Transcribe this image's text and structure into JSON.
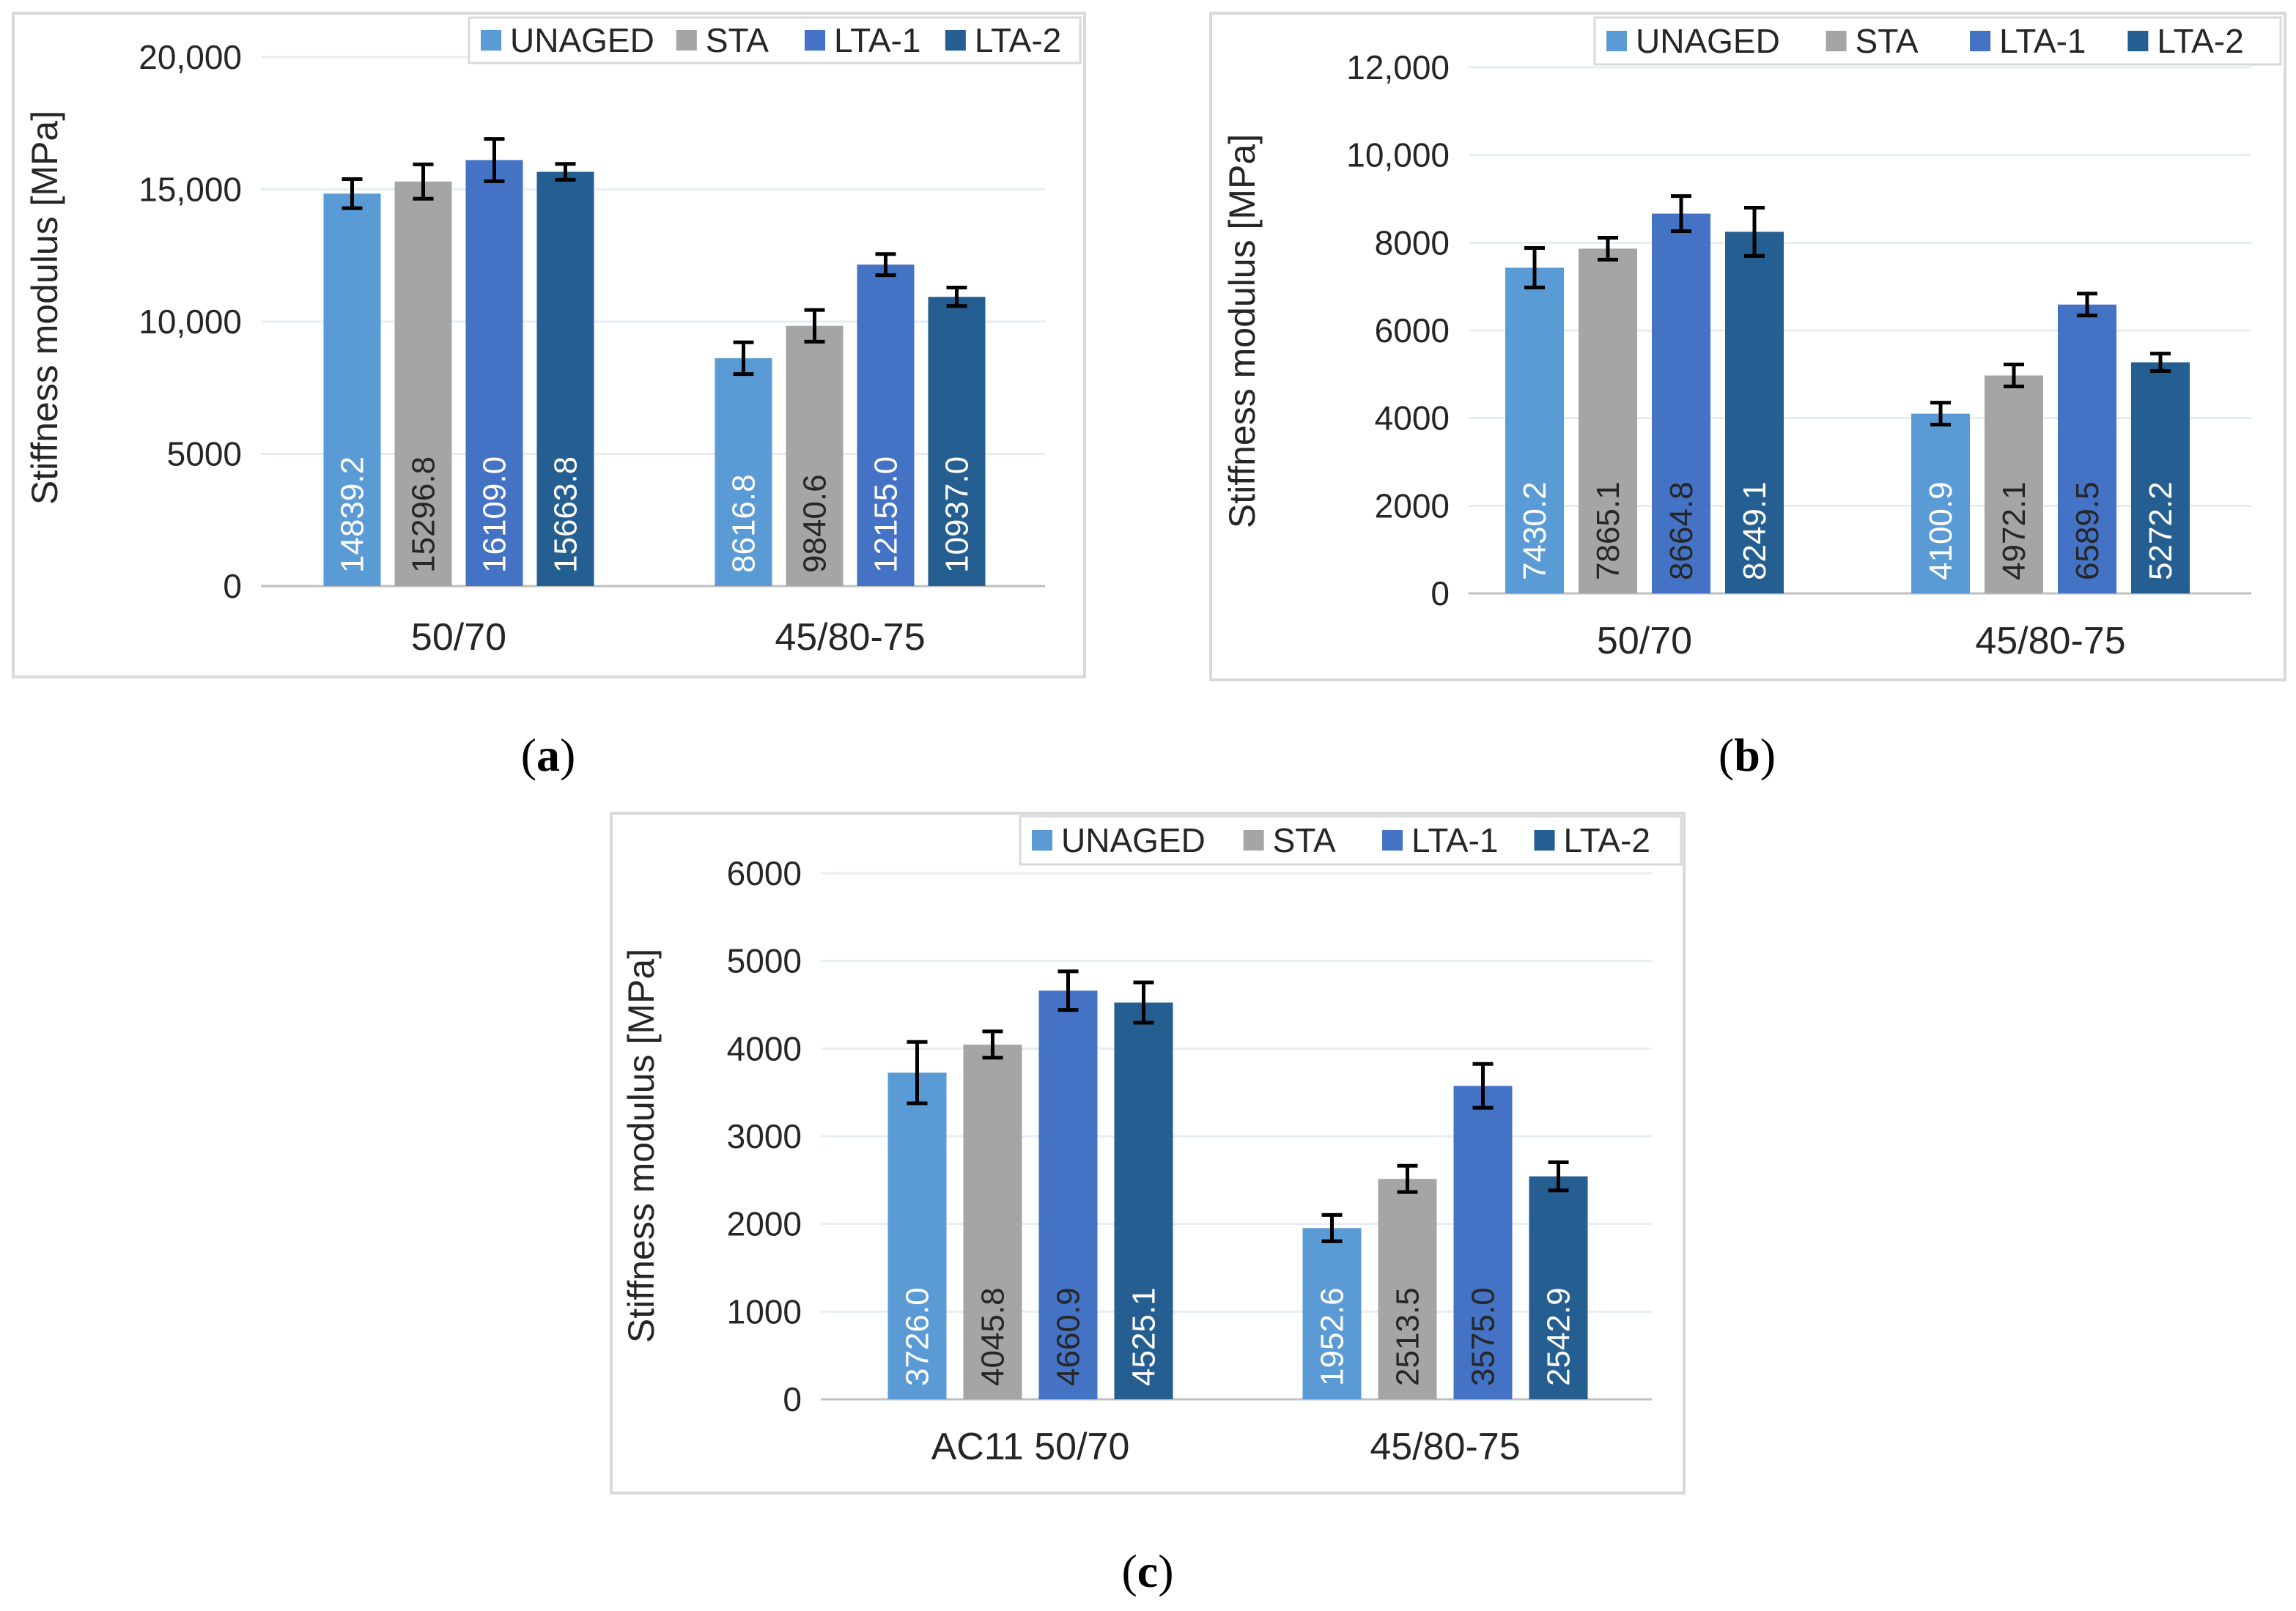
{
  "chart_data": [
    {
      "type": "bar",
      "panel_label": "a",
      "ylabel": "Stiffness modulus [MPa]",
      "ylim": [
        0,
        20000
      ],
      "yticks": [
        0,
        5000,
        10000,
        15000,
        20000
      ],
      "ytick_labels": [
        "0",
        "5000",
        "10,000",
        "15,000",
        "20,000"
      ],
      "categories": [
        "50/70",
        "45/80-75"
      ],
      "legend": [
        "UNAGED",
        "STA",
        "LTA-1",
        "LTA-2"
      ],
      "series": [
        {
          "name": "UNAGED",
          "color": "#5b9bd5",
          "values": [
            14839.2,
            8616.8
          ],
          "labels": [
            "14839.2",
            "8616.8"
          ],
          "errors": [
            550,
            600
          ],
          "label_color": "#ffffff"
        },
        {
          "name": "STA",
          "color": "#a5a5a5",
          "values": [
            15296.8,
            9840.6
          ],
          "labels": [
            "15296.8",
            "9840.6"
          ],
          "errors": [
            650,
            600
          ],
          "label_color": "#262626"
        },
        {
          "name": "LTA-1",
          "color": "#4472c4",
          "values": [
            16109.0,
            12155.0
          ],
          "labels": [
            "16109.0",
            "12155.0"
          ],
          "errors": [
            800,
            400
          ],
          "label_color": "#ffffff"
        },
        {
          "name": "LTA-2",
          "color": "#255e91",
          "values": [
            15663.8,
            10937.0
          ],
          "labels": [
            "15663.8",
            "10937.0"
          ],
          "errors": [
            300,
            350
          ],
          "label_color": "#ffffff"
        }
      ]
    },
    {
      "type": "bar",
      "panel_label": "b",
      "ylabel": "Stiffness modulus [MPa]",
      "ylim": [
        0,
        12000
      ],
      "yticks": [
        0,
        2000,
        4000,
        6000,
        8000,
        10000,
        12000
      ],
      "ytick_labels": [
        "0",
        "2000",
        "4000",
        "6000",
        "8000",
        "10,000",
        "12,000"
      ],
      "categories": [
        "50/70",
        "45/80-75"
      ],
      "legend": [
        "UNAGED",
        "STA",
        "LTA-1",
        "LTA-2"
      ],
      "series": [
        {
          "name": "UNAGED",
          "color": "#5b9bd5",
          "values": [
            7430.2,
            4100.9
          ],
          "labels": [
            "7430.2",
            "4100.9"
          ],
          "errors": [
            450,
            250
          ],
          "label_color": "#ffffff"
        },
        {
          "name": "STA",
          "color": "#a5a5a5",
          "values": [
            7865.1,
            4972.1
          ],
          "labels": [
            "7865.1",
            "4972.1"
          ],
          "errors": [
            250,
            250
          ],
          "label_color": "#262626"
        },
        {
          "name": "LTA-1",
          "color": "#4472c4",
          "values": [
            8664.8,
            6589.5
          ],
          "labels": [
            "8664.8",
            "6589.5"
          ],
          "errors": [
            400,
            250
          ],
          "label_color": "#262626"
        },
        {
          "name": "LTA-2",
          "color": "#255e91",
          "values": [
            8249.1,
            5272.2
          ],
          "labels": [
            "8249.1",
            "5272.2"
          ],
          "errors": [
            550,
            200
          ],
          "label_color": "#ffffff"
        }
      ]
    },
    {
      "type": "bar",
      "panel_label": "c",
      "ylabel": "Stiffness modulus [MPa]",
      "ylim": [
        0,
        6000
      ],
      "yticks": [
        0,
        1000,
        2000,
        3000,
        4000,
        5000,
        6000
      ],
      "ytick_labels": [
        "0",
        "1000",
        "2000",
        "3000",
        "4000",
        "5000",
        "6000"
      ],
      "categories": [
        "AC11 50/70",
        "45/80-75"
      ],
      "legend": [
        "UNAGED",
        "STA",
        "LTA-1",
        "LTA-2"
      ],
      "series": [
        {
          "name": "UNAGED",
          "color": "#5b9bd5",
          "values": [
            3726.0,
            1952.6
          ],
          "labels": [
            "3726.0",
            "1952.6"
          ],
          "errors": [
            350,
            150
          ],
          "label_color": "#ffffff"
        },
        {
          "name": "STA",
          "color": "#a5a5a5",
          "values": [
            4045.8,
            2513.5
          ],
          "labels": [
            "4045.8",
            "2513.5"
          ],
          "errors": [
            150,
            150
          ],
          "label_color": "#262626"
        },
        {
          "name": "LTA-1",
          "color": "#4472c4",
          "values": [
            4660.9,
            3575.0
          ],
          "labels": [
            "4660.9",
            "3575.0"
          ],
          "errors": [
            220,
            250
          ],
          "label_color": "#262626"
        },
        {
          "name": "LTA-2",
          "color": "#255e91",
          "values": [
            4525.1,
            2542.9
          ],
          "labels": [
            "4525.1",
            "2542.9"
          ],
          "errors": [
            230,
            160
          ],
          "label_color": "#ffffff"
        }
      ]
    }
  ]
}
